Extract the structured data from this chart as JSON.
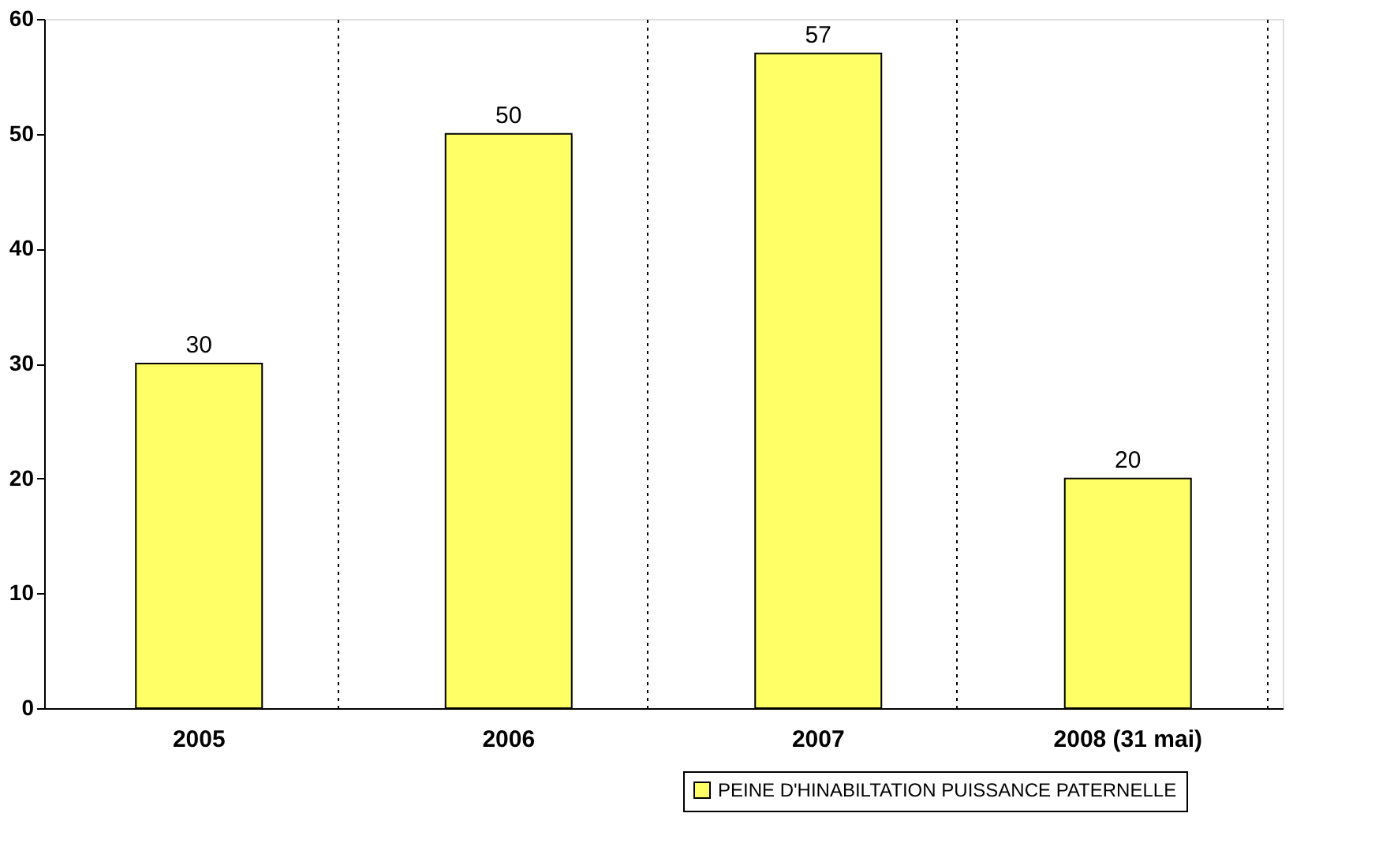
{
  "chart_data": {
    "type": "bar",
    "categories": [
      "2005",
      "2006",
      "2007",
      "2008 (31 mai)"
    ],
    "series": [
      {
        "name": "PEINE D'HINABILTATION PUISSANCE PATERNELLE",
        "color": "#ffff66",
        "values": [
          30,
          50,
          57,
          20
        ]
      }
    ],
    "ylim": [
      0,
      60
    ],
    "yticks": [
      0,
      10,
      20,
      30,
      40,
      50,
      60
    ],
    "grid": "x",
    "legend": "bottom right",
    "data_labels": true
  }
}
